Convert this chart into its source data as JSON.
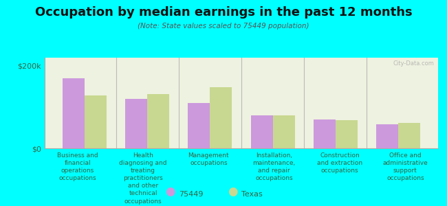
{
  "title": "Occupation by median earnings in the past 12 months",
  "subtitle": "(Note: State values scaled to 75449 population)",
  "background_color": "#00FFFF",
  "plot_bg_color": "#eef2e0",
  "categories": [
    "Business and\nfinancial\noperations\noccupations",
    "Health\ndiagnosing and\ntreating\npractitioners\nand other\ntechnical\noccupations",
    "Management\noccupations",
    "Installation,\nmaintenance,\nand repair\noccupations",
    "Construction\nand extraction\noccupations",
    "Office and\nadministrative\nsupport\noccupations"
  ],
  "values_75449": [
    170000,
    120000,
    110000,
    80000,
    70000,
    58000
  ],
  "values_texas": [
    128000,
    132000,
    148000,
    80000,
    68000,
    62000
  ],
  "color_75449": "#cc99dd",
  "color_texas": "#c8d890",
  "ylim": [
    0,
    220000
  ],
  "yticks": [
    0,
    200000
  ],
  "ytick_labels": [
    "$0",
    "$200k"
  ],
  "legend_labels": [
    "75449",
    "Texas"
  ],
  "bar_width": 0.35,
  "watermark": "City-Data.com",
  "text_color": "#336644"
}
